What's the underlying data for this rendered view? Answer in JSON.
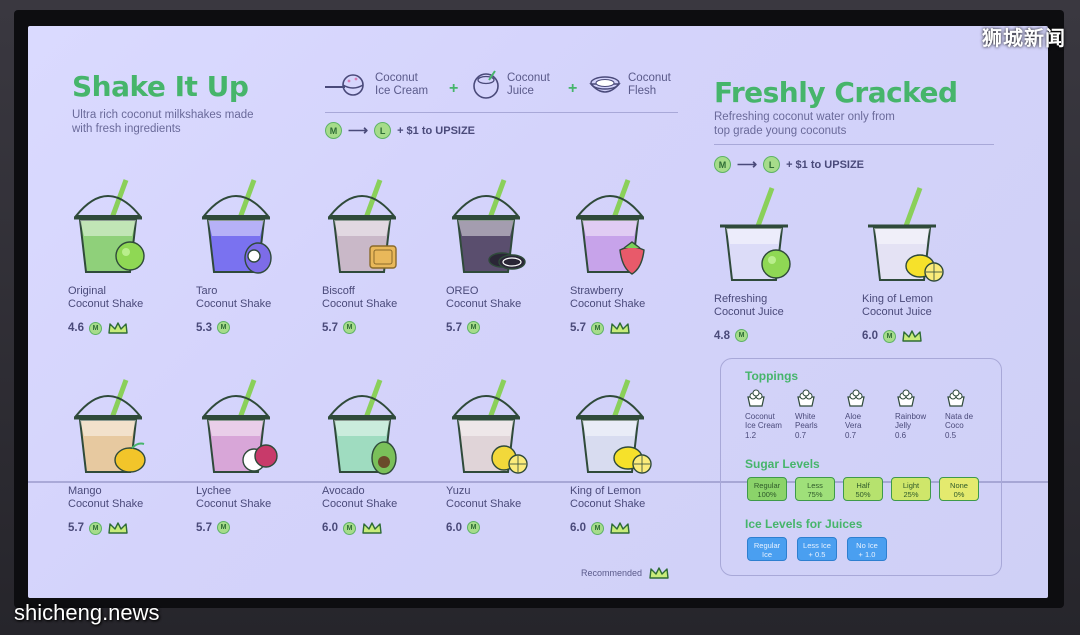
{
  "left_section": {
    "title": "Shake It Up",
    "subtitle_line1": "Ultra rich coconut milkshakes made",
    "subtitle_line2": "with fresh ingredients",
    "formula": [
      {
        "line1": "Coconut",
        "line2": "Ice Cream",
        "icon": "ice-cream-scoop-icon"
      },
      {
        "line1": "Coconut",
        "line2": "Juice",
        "icon": "coconut-icon"
      },
      {
        "line1": "Coconut",
        "line2": "Flesh",
        "icon": "coconut-flesh-icon"
      }
    ],
    "plus": "+",
    "upsize": {
      "from": "M",
      "to": "L",
      "text": "+ $1 to UPSIZE"
    }
  },
  "right_section": {
    "title": "Freshly Cracked",
    "subtitle_line1": "Refreshing coconut water only from",
    "subtitle_line2": "top grade young coconuts",
    "upsize": {
      "from": "M",
      "to": "L",
      "text": "+ $1 to UPSIZE"
    }
  },
  "shakes": [
    {
      "line1": "Original",
      "line2": "Coconut Shake",
      "price": "4.6",
      "size": "M",
      "recommended": true,
      "fill": "#8fd07a",
      "fruit": "coconut"
    },
    {
      "line1": "Taro",
      "line2": "Coconut Shake",
      "price": "5.3",
      "size": "M",
      "recommended": false,
      "fill": "#7a72f0",
      "fruit": "taro"
    },
    {
      "line1": "Biscoff",
      "line2": "Coconut Shake",
      "price": "5.7",
      "size": "M",
      "recommended": false,
      "fill": "#c9b8c8",
      "fruit": "biscuit"
    },
    {
      "line1": "OREO",
      "line2": "Coconut Shake",
      "price": "5.7",
      "size": "M",
      "recommended": false,
      "fill": "#5a4e6e",
      "fruit": "oreo"
    },
    {
      "line1": "Strawberry",
      "line2": "Coconut Shake",
      "price": "5.7",
      "size": "M",
      "recommended": true,
      "fill": "#c7a3ea",
      "fruit": "strawberry"
    },
    {
      "line1": "Mango",
      "line2": "Coconut Shake",
      "price": "5.7",
      "size": "M",
      "recommended": true,
      "fill": "#e7c9a0",
      "fruit": "mango"
    },
    {
      "line1": "Lychee",
      "line2": "Coconut Shake",
      "price": "5.7",
      "size": "M",
      "recommended": false,
      "fill": "#d8a6d8",
      "fruit": "lychee"
    },
    {
      "line1": "Avocado",
      "line2": "Coconut Shake",
      "price": "6.0",
      "size": "M",
      "recommended": true,
      "fill": "#9fdcc0",
      "fruit": "avocado"
    },
    {
      "line1": "Yuzu",
      "line2": "Coconut Shake",
      "price": "6.0",
      "size": "M",
      "recommended": false,
      "fill": "#e0d4d8",
      "fruit": "yuzu"
    },
    {
      "line1": "King of Lemon",
      "line2": "Coconut Shake",
      "price": "6.0",
      "size": "M",
      "recommended": true,
      "fill": "#d8dcf0",
      "fruit": "lemon"
    }
  ],
  "juices": [
    {
      "line1": "Refreshing",
      "line2": "Coconut Juice",
      "price": "4.8",
      "size": "M",
      "recommended": false,
      "fill": "#dcdcf8",
      "fruit": "coconut"
    },
    {
      "line1": "King of Lemon",
      "line2": "Coconut Juice",
      "price": "6.0",
      "size": "M",
      "recommended": true,
      "fill": "#e4e2f4",
      "fruit": "lemon"
    }
  ],
  "toppings": {
    "heading": "Toppings",
    "items": [
      {
        "line1": "Coconut",
        "line2": "Ice Cream",
        "price": "1.2",
        "icon": "ice-cream-icon"
      },
      {
        "line1": "White",
        "line2": "Pearls",
        "price": "0.7",
        "icon": "pearls-icon"
      },
      {
        "line1": "Aloe",
        "line2": "Vera",
        "price": "0.7",
        "icon": "aloe-vera-icon"
      },
      {
        "line1": "Rainbow",
        "line2": "Jelly",
        "price": "0.6",
        "icon": "jelly-icon"
      },
      {
        "line1": "Nata de",
        "line2": "Coco",
        "price": "0.5",
        "icon": "nata-de-coco-icon"
      }
    ]
  },
  "sugar": {
    "heading": "Sugar Levels",
    "levels": [
      {
        "line1": "Regular",
        "line2": "100%",
        "color": "#8bd36a"
      },
      {
        "line1": "Less",
        "line2": "75%",
        "color": "#9fe07a"
      },
      {
        "line1": "Half",
        "line2": "50%",
        "color": "#b6e26e"
      },
      {
        "line1": "Light",
        "line2": "25%",
        "color": "#cfe66a"
      },
      {
        "line1": "None",
        "line2": "0%",
        "color": "#e4ea6e"
      }
    ]
  },
  "ice": {
    "heading": "Ice Levels for Juices",
    "levels": [
      {
        "line1": "Regular",
        "line2": "Ice"
      },
      {
        "line1": "Less Ice",
        "line2": "+ 0.5"
      },
      {
        "line1": "No Ice",
        "line2": "+ 1.0"
      }
    ]
  },
  "recommended_label": "Recommended",
  "watermarks": {
    "top_right": "狮城新闻",
    "bottom_left": "shicheng.news"
  }
}
